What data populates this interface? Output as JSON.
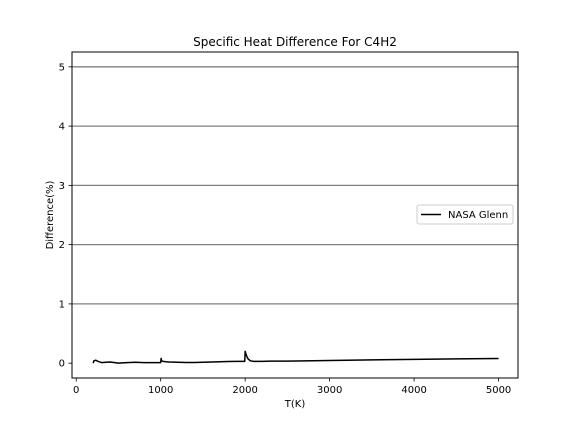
{
  "chart_data": {
    "type": "line",
    "title": "Specific Heat Difference For C4H2",
    "xlabel": "T(K)",
    "ylabel": "Difference(%)",
    "xlim": [
      -50,
      5230
    ],
    "ylim": [
      -0.25,
      5.25
    ],
    "xticks": [
      0,
      1000,
      2000,
      3000,
      4000,
      5000
    ],
    "yticks": [
      0,
      1,
      2,
      3,
      4,
      5
    ],
    "grid": "horizontal-major",
    "legend": "center-right",
    "series": [
      {
        "name": "NASA Glenn",
        "color": "#000000",
        "x": [
          200,
          210,
          230,
          260,
          300,
          350,
          400,
          500,
          600,
          700,
          800,
          900,
          1000,
          1005,
          1010,
          1030,
          1060,
          1100,
          1200,
          1300,
          1400,
          1500,
          1600,
          1700,
          1800,
          1900,
          1995,
          2000,
          2010,
          2030,
          2060,
          2100,
          2200,
          2300,
          2500,
          3000,
          3500,
          4000,
          4500,
          5000
        ],
        "y": [
          0.0,
          0.04,
          0.05,
          0.03,
          0.01,
          0.015,
          0.02,
          0.0,
          0.01,
          0.015,
          0.01,
          0.01,
          0.01,
          0.08,
          0.04,
          0.03,
          0.025,
          0.02,
          0.015,
          0.012,
          0.012,
          0.015,
          0.02,
          0.025,
          0.028,
          0.03,
          0.03,
          0.2,
          0.15,
          0.08,
          0.04,
          0.03,
          0.03,
          0.035,
          0.035,
          0.045,
          0.055,
          0.065,
          0.072,
          0.08
        ]
      }
    ]
  }
}
